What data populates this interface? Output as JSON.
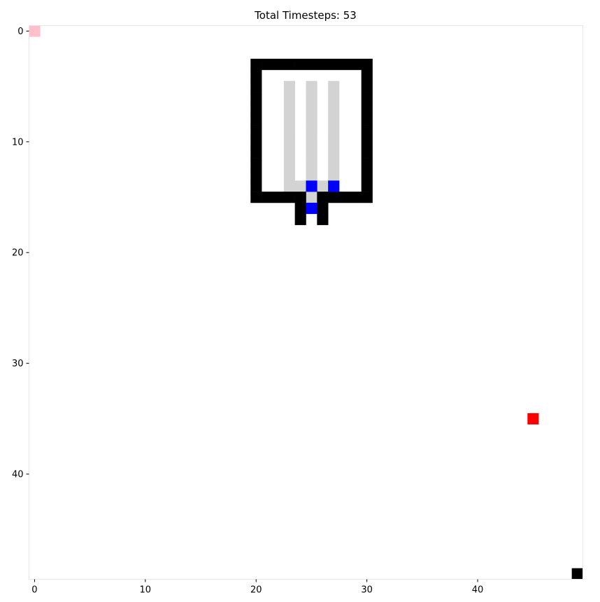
{
  "title": "Total Timesteps: 53",
  "grid": {
    "size": 50
  },
  "axes": {
    "x_ticks": [
      0,
      10,
      20,
      30,
      40
    ],
    "y_ticks": [
      0,
      10,
      20,
      30,
      40
    ]
  },
  "colors": {
    "wall": "#000000",
    "floor": "#d3d3d3",
    "agent": "#0000ff",
    "target": "#ff0000",
    "start": "#ffc0cb",
    "corner": "#000000"
  },
  "cells": {
    "walls": [
      [
        20,
        3
      ],
      [
        21,
        3
      ],
      [
        22,
        3
      ],
      [
        23,
        3
      ],
      [
        24,
        3
      ],
      [
        25,
        3
      ],
      [
        26,
        3
      ],
      [
        27,
        3
      ],
      [
        28,
        3
      ],
      [
        29,
        3
      ],
      [
        30,
        3
      ],
      [
        20,
        4
      ],
      [
        30,
        4
      ],
      [
        20,
        5
      ],
      [
        30,
        5
      ],
      [
        20,
        6
      ],
      [
        30,
        6
      ],
      [
        20,
        7
      ],
      [
        30,
        7
      ],
      [
        20,
        8
      ],
      [
        30,
        8
      ],
      [
        20,
        9
      ],
      [
        30,
        9
      ],
      [
        20,
        10
      ],
      [
        30,
        10
      ],
      [
        20,
        11
      ],
      [
        30,
        11
      ],
      [
        20,
        12
      ],
      [
        30,
        12
      ],
      [
        20,
        13
      ],
      [
        30,
        13
      ],
      [
        20,
        14
      ],
      [
        30,
        14
      ],
      [
        20,
        15
      ],
      [
        21,
        15
      ],
      [
        22,
        15
      ],
      [
        23,
        15
      ],
      [
        24,
        15
      ],
      [
        26,
        15
      ],
      [
        27,
        15
      ],
      [
        28,
        15
      ],
      [
        29,
        15
      ],
      [
        30,
        15
      ],
      [
        24,
        16
      ],
      [
        26,
        16
      ],
      [
        24,
        17
      ],
      [
        26,
        17
      ]
    ],
    "floor": [
      [
        23,
        5
      ],
      [
        23,
        6
      ],
      [
        23,
        7
      ],
      [
        23,
        8
      ],
      [
        23,
        9
      ],
      [
        23,
        10
      ],
      [
        23,
        11
      ],
      [
        23,
        12
      ],
      [
        23,
        13
      ],
      [
        23,
        14
      ],
      [
        25,
        5
      ],
      [
        25,
        6
      ],
      [
        25,
        7
      ],
      [
        25,
        8
      ],
      [
        25,
        9
      ],
      [
        25,
        10
      ],
      [
        25,
        11
      ],
      [
        25,
        12
      ],
      [
        25,
        13
      ],
      [
        27,
        5
      ],
      [
        27,
        6
      ],
      [
        27,
        7
      ],
      [
        27,
        8
      ],
      [
        27,
        9
      ],
      [
        27,
        10
      ],
      [
        27,
        11
      ],
      [
        27,
        12
      ],
      [
        27,
        13
      ],
      [
        24,
        14
      ],
      [
        26,
        14
      ],
      [
        25,
        15
      ]
    ],
    "agents": [
      [
        25,
        14
      ],
      [
        27,
        14
      ],
      [
        25,
        16
      ]
    ],
    "target": [
      [
        45,
        35
      ]
    ],
    "start": [
      [
        0,
        0
      ]
    ],
    "corner": [
      [
        49,
        49
      ]
    ]
  }
}
